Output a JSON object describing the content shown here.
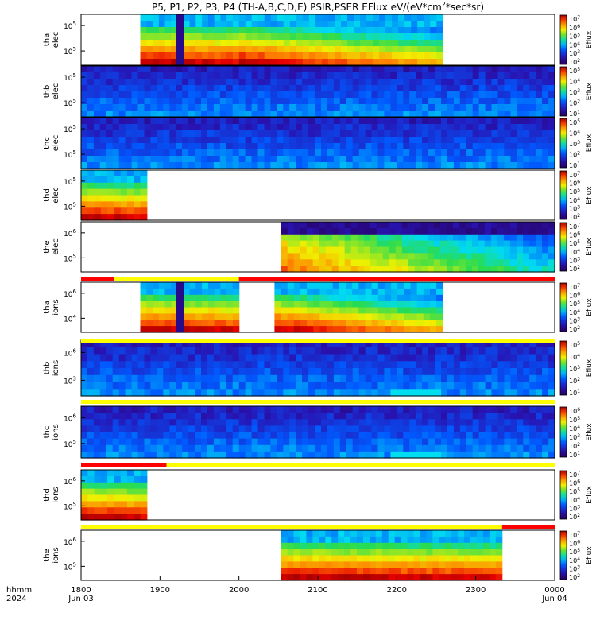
{
  "title": "P5, P1, P2, P3, P4 (TH-A,B,C,D,E) PSIR,PSER EFlux eV/(eV*cm",
  "title_sup": "2",
  "title_tail": "*sec*sr)",
  "colors": {
    "panel_border": "#000000",
    "flag_red": "#ff0000",
    "flag_yellow": "#ffff00"
  },
  "chart_data": {
    "type": "heatmap",
    "x_ticks": [
      "1800",
      "1900",
      "2000",
      "2100",
      "2200",
      "2300",
      "0000"
    ],
    "x_dates": [
      "Jun 03",
      "Jun 04"
    ],
    "x_row_labels": [
      "hhmm",
      "2024"
    ],
    "x_range_hhmm": [
      "1800",
      "0000"
    ],
    "panels": [
      {
        "label1": "tha",
        "label2": "elec",
        "yticks": [
          "10^5",
          "10^5"
        ],
        "cbar_ticks": [
          "10^7",
          "10^6",
          "10^5",
          "10^4",
          "10^3",
          "10^2"
        ],
        "cbar_label": "Eflux",
        "data_spans": [
          [
            "1845",
            "2000"
          ],
          [
            "2000",
            "2235"
          ]
        ]
      },
      {
        "label1": "thb",
        "label2": "elec",
        "yticks": [
          "10^5",
          "10^5"
        ],
        "cbar_ticks": [
          "10^5",
          "10^4",
          "10^3",
          "10^2",
          "10^1"
        ],
        "cbar_label": "Eflux",
        "data_spans": [
          [
            "1800",
            "0000"
          ]
        ]
      },
      {
        "label1": "thc",
        "label2": "elec",
        "yticks": [
          "10^5",
          "10^5"
        ],
        "cbar_ticks": [
          "10^5",
          "10^4",
          "10^3",
          "10^2",
          "10^1"
        ],
        "cbar_label": "Eflux",
        "data_spans": [
          [
            "1800",
            "0000"
          ]
        ]
      },
      {
        "label1": "thd",
        "label2": "elec",
        "yticks": [
          "10^5",
          "10^5"
        ],
        "cbar_ticks": [
          "10^7",
          "10^6",
          "10^5",
          "10^4",
          "10^3",
          "10^2"
        ],
        "cbar_label": "Eflux",
        "data_spans": [
          [
            "1800",
            "1850"
          ]
        ]
      },
      {
        "label1": "the",
        "label2": "elec",
        "yticks": [
          "10^6",
          "10^5"
        ],
        "cbar_ticks": [
          "10^7",
          "10^6",
          "10^5",
          "10^4",
          "10^3",
          "10^2"
        ],
        "cbar_label": "Eflux",
        "data_spans": [
          [
            "2032",
            "0000"
          ]
        ]
      },
      {
        "label1": "tha",
        "label2": "ions",
        "yticks": [
          "10^6",
          "10^4"
        ],
        "cbar_ticks": [
          "10^7",
          "10^6",
          "10^5",
          "10^4",
          "10^3",
          "10^2"
        ],
        "cbar_label": "Eflux",
        "data_spans": [
          [
            "1845",
            "2000"
          ],
          [
            "2027",
            "2235"
          ]
        ]
      },
      {
        "label1": "thb",
        "label2": "ions",
        "yticks": [
          "10^6",
          "10^3"
        ],
        "cbar_ticks": [
          "10^5",
          "10^4",
          "10^3",
          "10^2",
          "10^1"
        ],
        "cbar_label": "Eflux",
        "data_spans": [
          [
            "1800",
            "0000"
          ]
        ]
      },
      {
        "label1": "thc",
        "label2": "ions",
        "yticks": [
          "10^6",
          "10^5"
        ],
        "cbar_ticks": [
          "10^6",
          "10^5",
          "10^4",
          "10^3",
          "10^2",
          "10^1"
        ],
        "cbar_label": "Eflux",
        "data_spans": [
          [
            "1800",
            "0000"
          ]
        ]
      },
      {
        "label1": "thd",
        "label2": "ions",
        "yticks": [
          "10^6",
          "10^5"
        ],
        "cbar_ticks": [
          "10^7",
          "10^6",
          "10^5",
          "10^4",
          "10^3",
          "10^2"
        ],
        "cbar_label": "Eflux",
        "data_spans": [
          [
            "1800",
            "1850"
          ]
        ]
      },
      {
        "label1": "the",
        "label2": "ions",
        "yticks": [
          "10^6",
          "10^5"
        ],
        "cbar_ticks": [
          "10^7",
          "10^6",
          "10^5",
          "10^4",
          "10^3",
          "10^2"
        ],
        "cbar_label": "Eflux",
        "data_spans": [
          [
            "2032",
            "2320"
          ]
        ]
      }
    ],
    "flag_bars": [
      {
        "after_panel": 4,
        "segments": [
          [
            "1800",
            "1825",
            "red"
          ],
          [
            "1825",
            "2000",
            "yellow"
          ],
          [
            "2000",
            "0000",
            "red"
          ]
        ]
      },
      {
        "after_panel": 5,
        "segments": [
          [
            "1800",
            "0000",
            "yellow"
          ]
        ]
      },
      {
        "after_panel": 6,
        "segments": [
          [
            "1800",
            "0000",
            "yellow"
          ]
        ]
      },
      {
        "after_panel": 7,
        "segments": [
          [
            "1800",
            "1905",
            "red"
          ],
          [
            "1905",
            "0000",
            "yellow"
          ]
        ]
      },
      {
        "after_panel": 8,
        "segments": [
          [
            "1800",
            "2320",
            "yellow"
          ],
          [
            "2320",
            "0000",
            "red"
          ]
        ]
      }
    ]
  }
}
